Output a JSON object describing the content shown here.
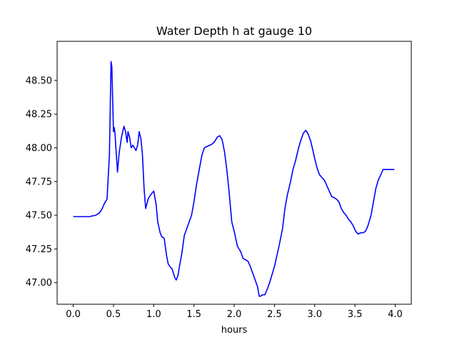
{
  "chart_data": {
    "type": "line",
    "title": "Water Depth h at gauge 10",
    "xlabel": "hours",
    "ylabel": "",
    "xlim": [
      -0.2,
      4.2
    ],
    "ylim": [
      46.84,
      48.79
    ],
    "xticks": [
      0.0,
      0.5,
      1.0,
      1.5,
      2.0,
      2.5,
      3.0,
      3.5,
      4.0
    ],
    "xtick_labels": [
      "0.0",
      "0.5",
      "1.0",
      "1.5",
      "2.0",
      "2.5",
      "3.0",
      "3.5",
      "4.0"
    ],
    "yticks": [
      47.0,
      47.25,
      47.5,
      47.75,
      48.0,
      48.25,
      48.5
    ],
    "ytick_labels": [
      "47.00",
      "47.25",
      "47.50",
      "47.75",
      "48.00",
      "48.25",
      "48.50"
    ],
    "grid": false,
    "line_color": "#0000ff",
    "series": [
      {
        "x": [
          0.0,
          0.2,
          0.28,
          0.33,
          0.36,
          0.39,
          0.42,
          0.45,
          0.47,
          0.48,
          0.5,
          0.51,
          0.52,
          0.53,
          0.55,
          0.57,
          0.6,
          0.63,
          0.65,
          0.67,
          0.68,
          0.7,
          0.72,
          0.74,
          0.76,
          0.78,
          0.8,
          0.82,
          0.84,
          0.86,
          0.88,
          0.9,
          0.93,
          0.96,
          1.0,
          1.03,
          1.05,
          1.08,
          1.1,
          1.13,
          1.16,
          1.18,
          1.2,
          1.23,
          1.26,
          1.28,
          1.3,
          1.32,
          1.35,
          1.38,
          1.41,
          1.44,
          1.47,
          1.5,
          1.53,
          1.56,
          1.6,
          1.63,
          1.66,
          1.7,
          1.73,
          1.76,
          1.79,
          1.82,
          1.85,
          1.88,
          1.91,
          1.94,
          1.97,
          2.0,
          2.04,
          2.08,
          2.11,
          2.14,
          2.17,
          2.2,
          2.23,
          2.26,
          2.29,
          2.31,
          2.33,
          2.35,
          2.38,
          2.41,
          2.44,
          2.47,
          2.5,
          2.53,
          2.56,
          2.6,
          2.63,
          2.66,
          2.7,
          2.73,
          2.76,
          2.8,
          2.83,
          2.86,
          2.89,
          2.92,
          2.95,
          2.97,
          3.0,
          3.03,
          3.06,
          3.09,
          3.12,
          3.15,
          3.18,
          3.21,
          3.24,
          3.27,
          3.3,
          3.33,
          3.36,
          3.39,
          3.42,
          3.45,
          3.48,
          3.51,
          3.54,
          3.57,
          3.6,
          3.63,
          3.66,
          3.7,
          3.73,
          3.76,
          3.79,
          3.82,
          3.85,
          3.88,
          3.91,
          3.94,
          3.97,
          3.99
        ],
        "y": [
          47.49,
          47.49,
          47.5,
          47.52,
          47.55,
          47.59,
          47.62,
          47.95,
          48.64,
          48.6,
          48.12,
          48.15,
          48.1,
          48.0,
          47.82,
          47.96,
          48.08,
          48.16,
          48.12,
          48.04,
          48.12,
          48.08,
          48.0,
          48.02,
          48.0,
          47.98,
          48.02,
          48.12,
          48.07,
          47.95,
          47.7,
          47.55,
          47.62,
          47.65,
          47.68,
          47.58,
          47.45,
          47.37,
          47.34,
          47.33,
          47.2,
          47.14,
          47.12,
          47.1,
          47.04,
          47.02,
          47.05,
          47.12,
          47.22,
          47.35,
          47.4,
          47.45,
          47.5,
          47.6,
          47.72,
          47.82,
          47.95,
          48.0,
          48.01,
          48.02,
          48.03,
          48.05,
          48.08,
          48.09,
          48.06,
          47.97,
          47.83,
          47.65,
          47.45,
          47.38,
          47.27,
          47.23,
          47.18,
          47.17,
          47.16,
          47.12,
          47.07,
          47.02,
          46.97,
          46.9,
          46.9,
          46.91,
          46.91,
          46.95,
          47.0,
          47.06,
          47.12,
          47.2,
          47.28,
          47.4,
          47.55,
          47.65,
          47.75,
          47.84,
          47.9,
          48.0,
          48.06,
          48.11,
          48.13,
          48.1,
          48.05,
          48.0,
          47.92,
          47.85,
          47.8,
          47.78,
          47.76,
          47.72,
          47.68,
          47.64,
          47.63,
          47.62,
          47.6,
          47.55,
          47.52,
          47.5,
          47.47,
          47.45,
          47.42,
          47.38,
          47.36,
          47.37,
          47.37,
          47.38,
          47.42,
          47.5,
          47.6,
          47.7,
          47.76,
          47.8,
          47.84,
          47.84,
          47.84,
          47.84,
          47.84,
          47.84
        ]
      }
    ]
  }
}
